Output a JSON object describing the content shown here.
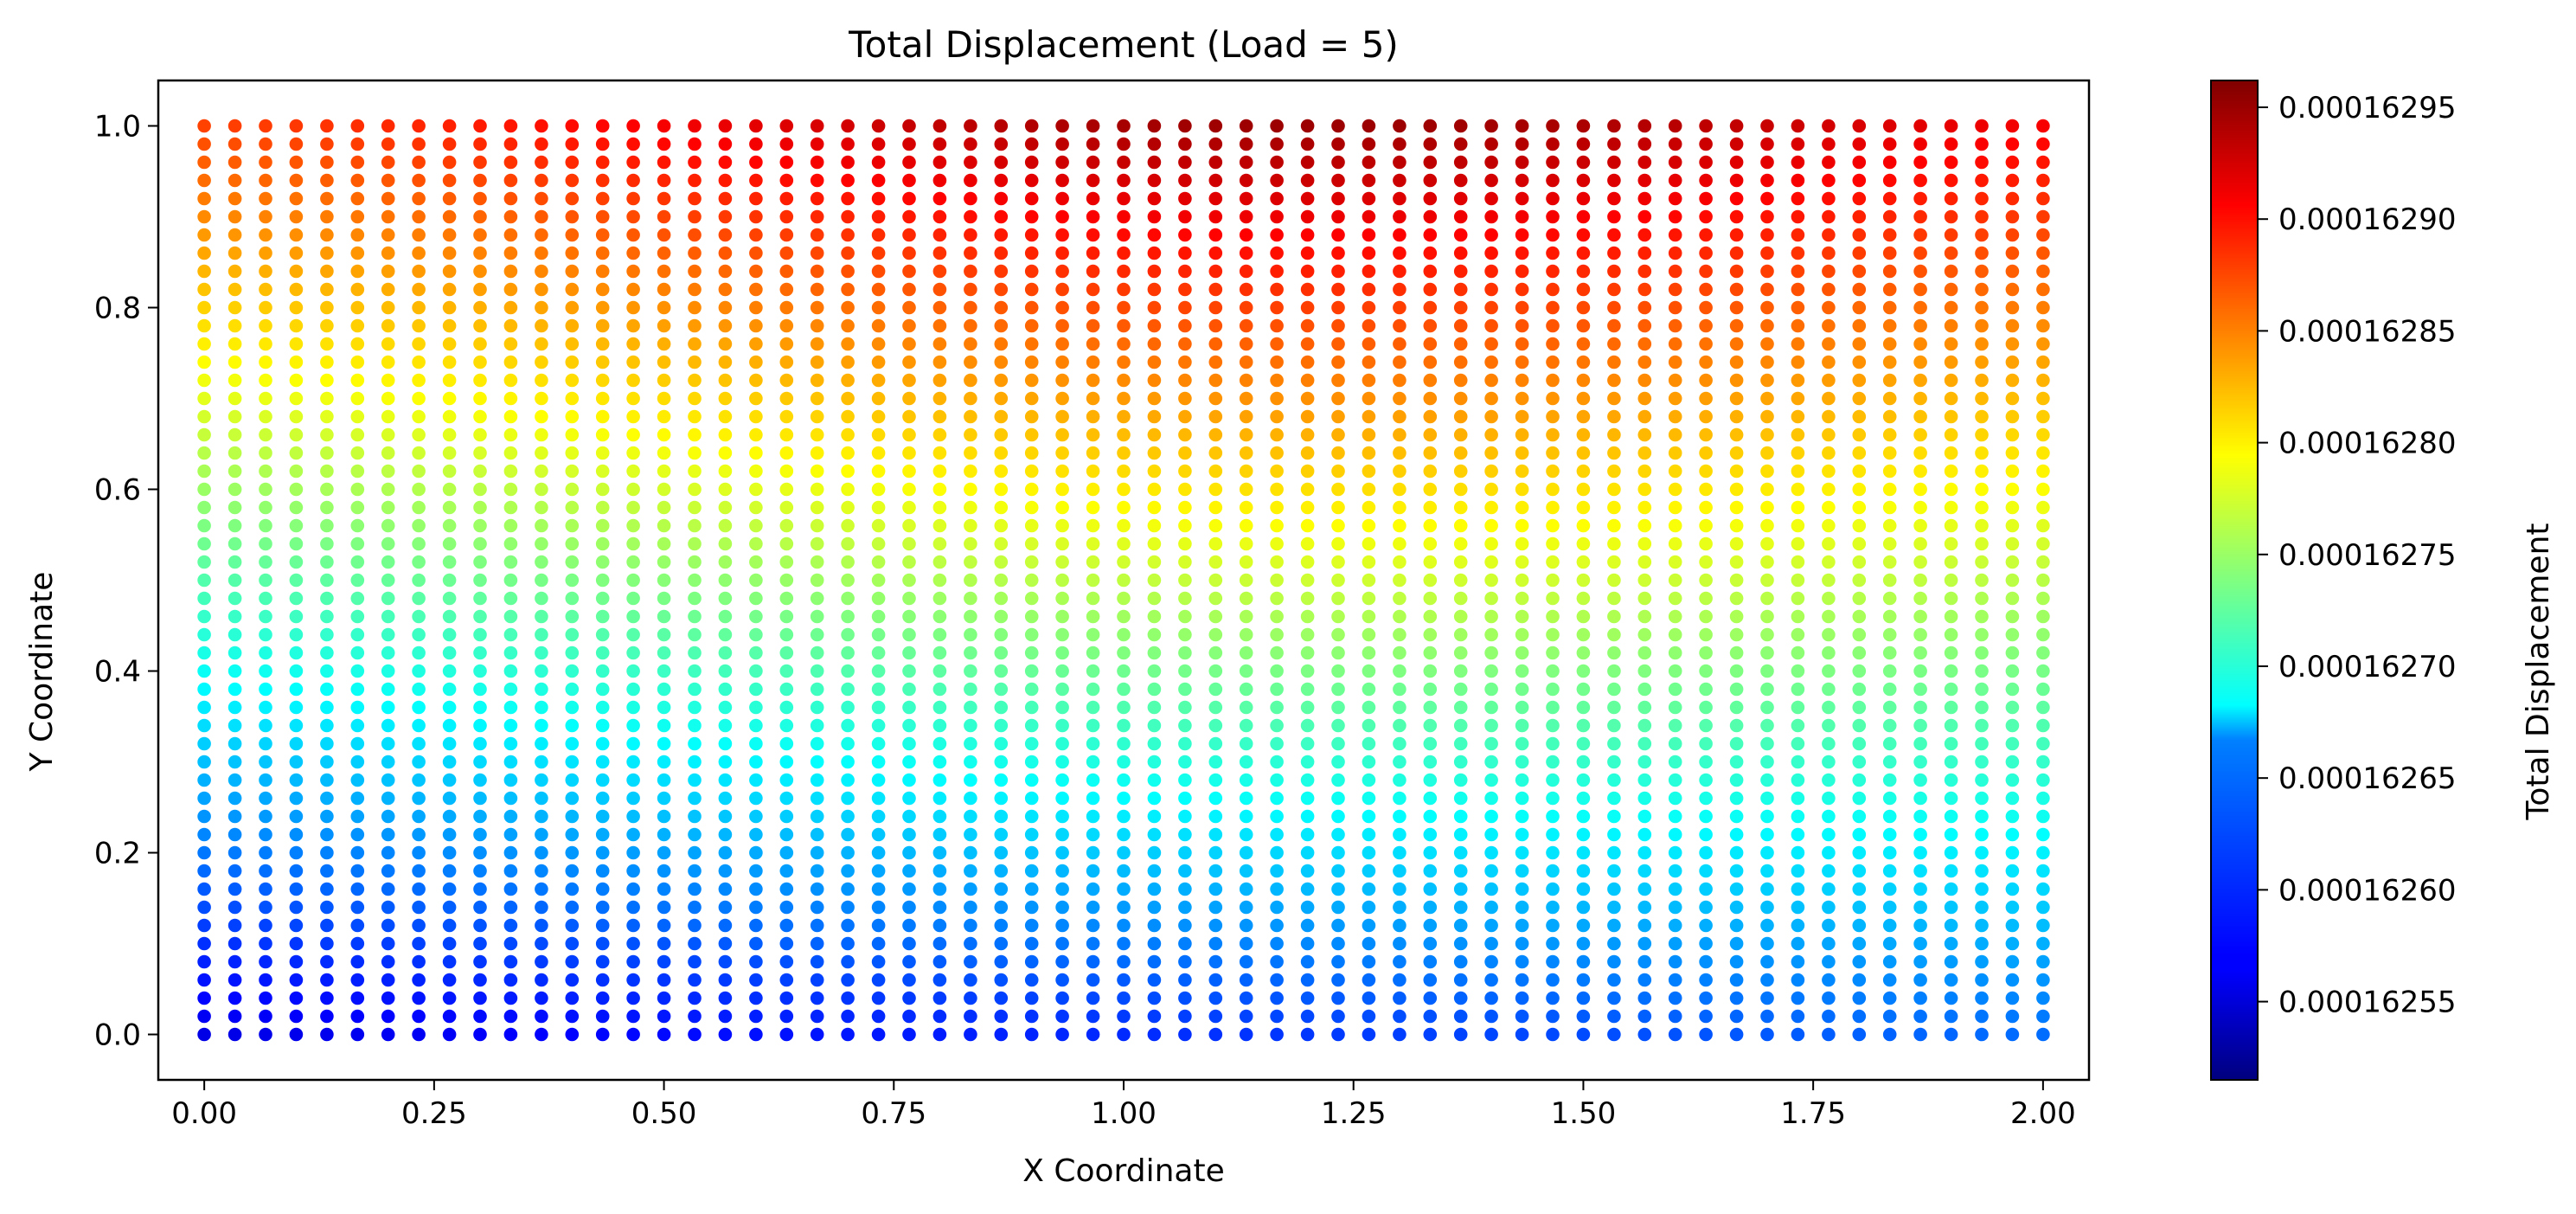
{
  "chart_data": {
    "type": "scatter",
    "title": "Total Displacement (Load = 5)",
    "xlabel": "X Coordinate",
    "ylabel": "Y Coordinate",
    "xlim": [
      -0.05,
      2.05
    ],
    "ylim": [
      -0.05,
      1.05
    ],
    "xticks": [
      0.0,
      0.25,
      0.5,
      0.75,
      1.0,
      1.25,
      1.5,
      1.75,
      2.0
    ],
    "xtick_labels": [
      "0.00",
      "0.25",
      "0.50",
      "0.75",
      "1.00",
      "1.25",
      "1.50",
      "1.75",
      "2.00"
    ],
    "yticks": [
      0.0,
      0.2,
      0.4,
      0.6,
      0.8,
      1.0
    ],
    "ytick_labels": [
      "0.0",
      "0.2",
      "0.4",
      "0.6",
      "0.8",
      "1.0"
    ],
    "grid": false,
    "colormap": "jet",
    "colorbar": {
      "label": "Total Displacement",
      "range": [
        0.000162515,
        0.000162962
      ],
      "ticks": [
        0.00016255,
        0.0001626,
        0.00016265,
        0.0001627,
        0.00016275,
        0.0001628,
        0.00016285,
        0.0001629,
        0.00016295
      ],
      "tick_labels": [
        "0.00016255",
        "0.00016260",
        "0.00016265",
        "0.00016270",
        "0.00016275",
        "0.00016280",
        "0.00016285",
        "0.00016290",
        "0.00016295"
      ]
    },
    "series": [
      {
        "x_range": [
          0.0,
          2.0
        ],
        "y_range": [
          0.0,
          1.0
        ],
        "x_count": 61,
        "y_count": 51,
        "value_min_at": [
          0.0,
          0.0
        ],
        "value_max_at": [
          1.25,
          1.0
        ],
        "value_range": [
          0.000162515,
          0.000162962
        ]
      }
    ]
  }
}
